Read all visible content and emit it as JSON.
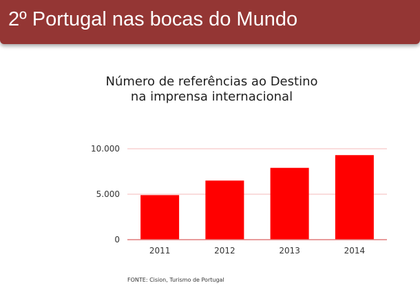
{
  "header": {
    "title": "2º   Portugal nas bocas do Mundo"
  },
  "colors": {
    "header_background": "#943634",
    "bar": "#ff0000",
    "gridline": "#f4b8b8",
    "axis": "#e07a7a"
  },
  "chart_data": {
    "type": "bar",
    "title_lines": [
      "Número de referências ao Destino",
      "na imprensa internacional"
    ],
    "categories": [
      "2011",
      "2012",
      "2013",
      "2014"
    ],
    "series": [
      {
        "values": [
          4900,
          6500,
          7900,
          9300
        ]
      }
    ],
    "ylim": [
      0,
      10000
    ],
    "yticks": [
      0,
      5000,
      10000
    ],
    "ytick_labels": [
      "0",
      "5.000",
      "10.000"
    ],
    "xlabel": "",
    "ylabel": "",
    "grid": true,
    "legend": "none"
  },
  "source": {
    "text": "FONTE: Cision, Turismo de Portugal"
  }
}
